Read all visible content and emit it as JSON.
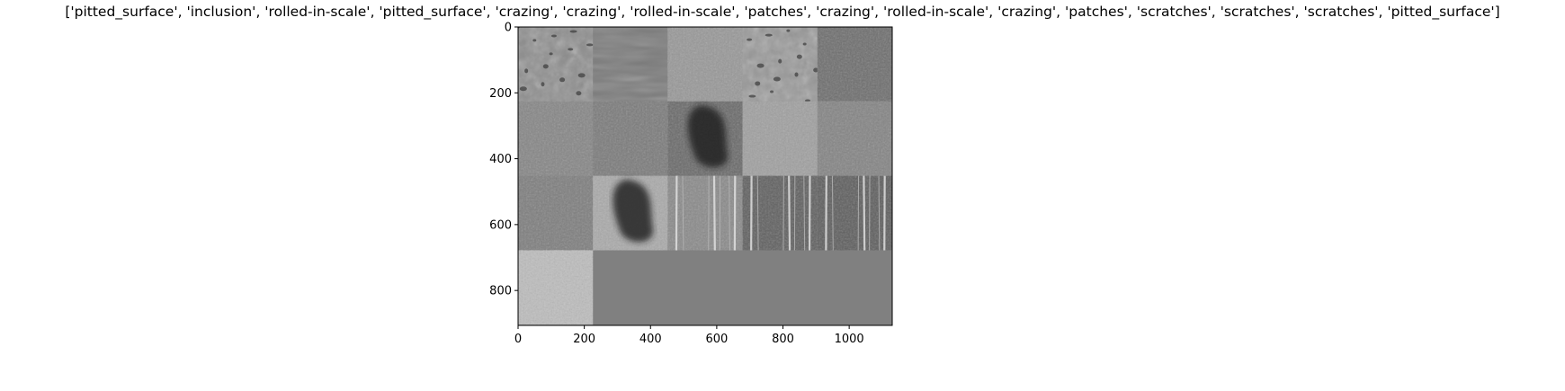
{
  "title": "['pitted_surface', 'inclusion', 'rolled-in-scale', 'pitted_surface', 'crazing', 'crazing', 'rolled-in-scale', 'patches', 'crazing', 'rolled-in-scale', 'crazing', 'patches', 'scratches', 'scratches', 'scratches', 'pitted_surface']",
  "axes": {
    "x_ticks": [
      0,
      200,
      400,
      600,
      800,
      1000
    ],
    "y_ticks": [
      0,
      200,
      400,
      600,
      800
    ],
    "x_range": [
      0,
      1130
    ],
    "y_range": [
      906,
      0
    ]
  },
  "image_grid": {
    "columns": 5,
    "rows": 4,
    "tile_size": 226,
    "tiles": [
      {
        "label": "pitted_surface",
        "tone": "#8e8e8e",
        "texture": "pits"
      },
      {
        "label": "inclusion",
        "tone": "#7a7a7a",
        "texture": "streaks"
      },
      {
        "label": "rolled-in-scale",
        "tone": "#989898",
        "texture": "fine"
      },
      {
        "label": "pitted_surface",
        "tone": "#999999",
        "texture": "pits"
      },
      {
        "label": "crazing",
        "tone": "#6e6e6e",
        "texture": "fine"
      },
      {
        "label": "crazing",
        "tone": "#868686",
        "texture": "fine"
      },
      {
        "label": "rolled-in-scale",
        "tone": "#7b7b7b",
        "texture": "fine"
      },
      {
        "label": "patches",
        "tone": "#6a6a6a",
        "texture": "blob"
      },
      {
        "label": "crazing",
        "tone": "#a0a0a0",
        "texture": "fine"
      },
      {
        "label": "rolled-in-scale",
        "tone": "#848484",
        "texture": "fine"
      },
      {
        "label": "crazing",
        "tone": "#7e7e7e",
        "texture": "fine"
      },
      {
        "label": "patches",
        "tone": "#aaaaaa",
        "texture": "blob"
      },
      {
        "label": "scratches",
        "tone": "#8a8a8a",
        "texture": "vlines"
      },
      {
        "label": "scratches",
        "tone": "#606060",
        "texture": "vlines"
      },
      {
        "label": "scratches",
        "tone": "#5e5e5e",
        "texture": "vlines"
      },
      {
        "label": "pitted_surface",
        "tone": "#bdbdbd",
        "texture": "fine"
      }
    ],
    "padding_tone": "#808080"
  }
}
